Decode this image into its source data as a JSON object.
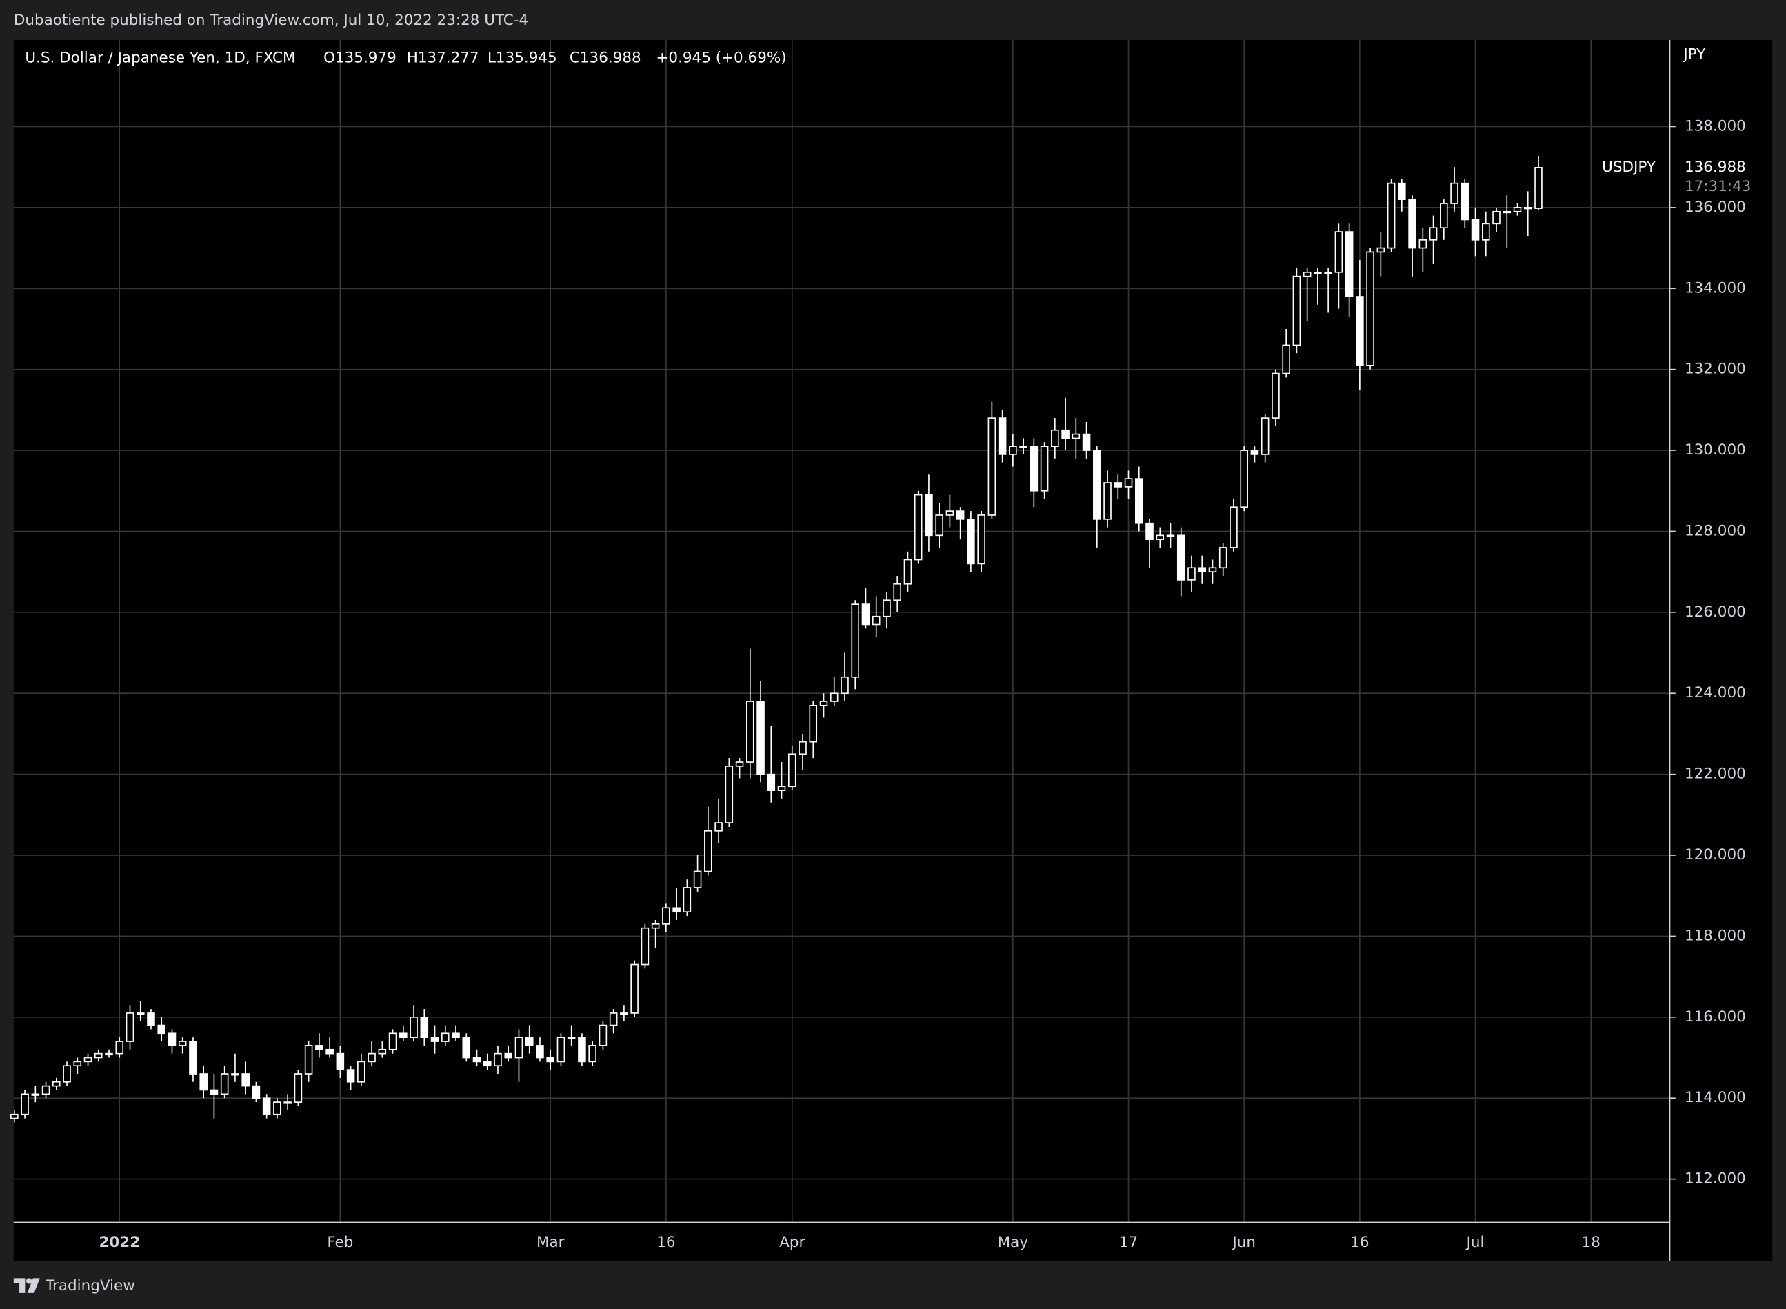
{
  "publisher": "Dubaotiente published on TradingView.com, Jul 10, 2022 23:28 UTC-4",
  "legend": {
    "symbol": "U.S. Dollar / Japanese Yen, 1D, FXCM",
    "open": "O135.979",
    "high": "H137.277",
    "low": "L135.945",
    "close": "C136.988",
    "change": "+0.945 (+0.69%)"
  },
  "brand": "TradingView",
  "chart_data": {
    "type": "candlestick",
    "y_unit": "JPY",
    "last_price_label": "136.988",
    "countdown": "17:31:43",
    "ylim": [
      110.93,
      140.14
    ],
    "yticks": [
      {
        "value": 112,
        "label": "112.000"
      },
      {
        "value": 114,
        "label": "114.000"
      },
      {
        "value": 116,
        "label": "116.000"
      },
      {
        "value": 118,
        "label": "118.000"
      },
      {
        "value": 120,
        "label": "120.000"
      },
      {
        "value": 122,
        "label": "122.000"
      },
      {
        "value": 124,
        "label": "124.000"
      },
      {
        "value": 126,
        "label": "126.000"
      },
      {
        "value": 128,
        "label": "128.000"
      },
      {
        "value": 130,
        "label": "130.000"
      },
      {
        "value": 132,
        "label": "132.000"
      },
      {
        "value": 134,
        "label": "134.000"
      },
      {
        "value": 136,
        "label": "136.000"
      },
      {
        "value": 138,
        "label": "138.000"
      }
    ],
    "grid": true,
    "categories": [
      null,
      null,
      null,
      null,
      null,
      null,
      null,
      null,
      null,
      null,
      "2022",
      null,
      null,
      null,
      null,
      null,
      null,
      null,
      null,
      null,
      null,
      null,
      null,
      null,
      null,
      null,
      null,
      null,
      null,
      null,
      null,
      "Feb",
      null,
      null,
      null,
      null,
      null,
      null,
      null,
      null,
      null,
      null,
      null,
      null,
      null,
      null,
      null,
      null,
      null,
      null,
      null,
      "Mar",
      null,
      null,
      null,
      null,
      null,
      null,
      null,
      null,
      null,
      null,
      "16",
      null,
      null,
      null,
      null,
      null,
      null,
      null,
      null,
      null,
      null,
      null,
      "Apr",
      null,
      null,
      null,
      null,
      null,
      null,
      null,
      null,
      null,
      null,
      null,
      null,
      null,
      null,
      null,
      null,
      null,
      null,
      null,
      null,
      "May",
      null,
      null,
      null,
      null,
      null,
      null,
      null,
      null,
      null,
      null,
      "17",
      null,
      null,
      null,
      null,
      null,
      null,
      null,
      null,
      null,
      null,
      "Jun",
      null,
      null,
      null,
      null,
      null,
      null,
      null,
      null,
      null,
      null,
      "16",
      null,
      null,
      null,
      null,
      null,
      null,
      null,
      null,
      null,
      null,
      "Jul",
      null,
      null,
      null,
      null,
      null,
      null,
      null,
      null,
      null,
      null,
      "18",
      null,
      null,
      null,
      null,
      null,
      null,
      null
    ],
    "series": [
      {
        "name": "USDJPY",
        "color": "#ffffff",
        "up_fill": "#000000",
        "down_fill": "#ffffff",
        "values": [
          [
            113.5,
            113.7,
            113.4,
            113.6
          ],
          [
            113.6,
            114.2,
            113.5,
            114.1
          ],
          [
            114.1,
            114.3,
            113.9,
            114.1
          ],
          [
            114.1,
            114.4,
            114.0,
            114.3
          ],
          [
            114.3,
            114.5,
            114.2,
            114.4
          ],
          [
            114.4,
            114.9,
            114.3,
            114.8
          ],
          [
            114.8,
            115.0,
            114.6,
            114.9
          ],
          [
            114.9,
            115.1,
            114.8,
            115.0
          ],
          [
            115.0,
            115.2,
            114.9,
            115.1
          ],
          [
            115.1,
            115.2,
            115.0,
            115.1
          ],
          [
            115.1,
            115.5,
            115.0,
            115.4
          ],
          [
            115.4,
            116.3,
            115.2,
            116.1
          ],
          [
            116.1,
            116.4,
            115.9,
            116.1
          ],
          [
            116.1,
            116.2,
            115.7,
            115.8
          ],
          [
            115.8,
            116.0,
            115.4,
            115.6
          ],
          [
            115.6,
            115.7,
            115.1,
            115.3
          ],
          [
            115.3,
            115.5,
            115.1,
            115.4
          ],
          [
            115.4,
            115.5,
            114.4,
            114.6
          ],
          [
            114.6,
            114.8,
            114.0,
            114.2
          ],
          [
            114.2,
            114.6,
            113.5,
            114.1
          ],
          [
            114.1,
            114.8,
            114.0,
            114.6
          ],
          [
            114.6,
            115.1,
            114.4,
            114.6
          ],
          [
            114.6,
            114.9,
            114.1,
            114.3
          ],
          [
            114.3,
            114.4,
            113.9,
            114.0
          ],
          [
            114.0,
            114.1,
            113.5,
            113.6
          ],
          [
            113.6,
            114.0,
            113.5,
            113.9
          ],
          [
            113.9,
            114.1,
            113.7,
            113.9
          ],
          [
            113.9,
            114.7,
            113.8,
            114.6
          ],
          [
            114.6,
            115.4,
            114.4,
            115.3
          ],
          [
            115.3,
            115.6,
            115.0,
            115.2
          ],
          [
            115.2,
            115.5,
            115.0,
            115.1
          ],
          [
            115.1,
            115.3,
            114.5,
            114.7
          ],
          [
            114.7,
            114.8,
            114.2,
            114.4
          ],
          [
            114.4,
            115.1,
            114.3,
            114.9
          ],
          [
            114.9,
            115.4,
            114.8,
            115.1
          ],
          [
            115.1,
            115.4,
            115.0,
            115.2
          ],
          [
            115.2,
            115.7,
            115.1,
            115.6
          ],
          [
            115.6,
            115.8,
            115.4,
            115.5
          ],
          [
            115.5,
            116.3,
            115.4,
            116.0
          ],
          [
            116.0,
            116.2,
            115.3,
            115.5
          ],
          [
            115.5,
            115.8,
            115.1,
            115.4
          ],
          [
            115.4,
            115.8,
            115.3,
            115.6
          ],
          [
            115.6,
            115.8,
            115.4,
            115.5
          ],
          [
            115.5,
            115.6,
            114.9,
            115.0
          ],
          [
            115.0,
            115.2,
            114.8,
            114.9
          ],
          [
            114.9,
            115.1,
            114.7,
            114.8
          ],
          [
            114.8,
            115.3,
            114.6,
            115.1
          ],
          [
            115.1,
            115.3,
            114.9,
            115.0
          ],
          [
            115.0,
            115.7,
            114.4,
            115.5
          ],
          [
            115.5,
            115.8,
            115.1,
            115.3
          ],
          [
            115.3,
            115.5,
            114.9,
            115.0
          ],
          [
            115.0,
            115.2,
            114.7,
            114.9
          ],
          [
            114.9,
            115.6,
            114.8,
            115.5
          ],
          [
            115.5,
            115.8,
            115.3,
            115.5
          ],
          [
            115.5,
            115.6,
            114.8,
            114.9
          ],
          [
            114.9,
            115.4,
            114.8,
            115.3
          ],
          [
            115.3,
            115.9,
            115.2,
            115.8
          ],
          [
            115.8,
            116.2,
            115.6,
            116.1
          ],
          [
            116.1,
            116.3,
            115.9,
            116.1
          ],
          [
            116.1,
            117.4,
            116.0,
            117.3
          ],
          [
            117.3,
            118.3,
            117.2,
            118.2
          ],
          [
            118.2,
            118.4,
            117.7,
            118.3
          ],
          [
            118.3,
            118.8,
            118.1,
            118.7
          ],
          [
            118.7,
            119.2,
            118.4,
            118.6
          ],
          [
            118.6,
            119.4,
            118.5,
            119.2
          ],
          [
            119.2,
            120.0,
            119.1,
            119.6
          ],
          [
            119.6,
            121.2,
            119.5,
            120.6
          ],
          [
            120.6,
            121.4,
            120.3,
            120.8
          ],
          [
            120.8,
            122.4,
            120.7,
            122.2
          ],
          [
            122.2,
            122.4,
            121.9,
            122.3
          ],
          [
            122.3,
            125.1,
            121.9,
            123.8
          ],
          [
            123.8,
            124.3,
            121.8,
            122.0
          ],
          [
            122.0,
            123.2,
            121.3,
            121.6
          ],
          [
            121.6,
            122.3,
            121.4,
            121.7
          ],
          [
            121.7,
            122.7,
            121.6,
            122.5
          ],
          [
            122.5,
            123.0,
            122.1,
            122.8
          ],
          [
            122.8,
            123.8,
            122.4,
            123.7
          ],
          [
            123.7,
            124.0,
            123.4,
            123.8
          ],
          [
            123.8,
            124.4,
            123.7,
            124.0
          ],
          [
            124.0,
            125.0,
            123.8,
            124.4
          ],
          [
            124.4,
            126.3,
            124.1,
            126.2
          ],
          [
            126.2,
            126.6,
            125.6,
            125.7
          ],
          [
            125.7,
            126.4,
            125.4,
            125.9
          ],
          [
            125.9,
            126.5,
            125.6,
            126.3
          ],
          [
            126.3,
            126.9,
            126.0,
            126.7
          ],
          [
            126.7,
            127.5,
            126.5,
            127.3
          ],
          [
            127.3,
            129.0,
            127.2,
            128.9
          ],
          [
            128.9,
            129.4,
            127.5,
            127.9
          ],
          [
            127.9,
            128.7,
            127.6,
            128.4
          ],
          [
            128.4,
            128.9,
            128.1,
            128.5
          ],
          [
            128.5,
            128.6,
            127.8,
            128.3
          ],
          [
            128.3,
            128.5,
            127.0,
            127.2
          ],
          [
            127.2,
            128.5,
            127.0,
            128.4
          ],
          [
            128.4,
            131.2,
            128.3,
            130.8
          ],
          [
            130.8,
            131.0,
            129.7,
            129.9
          ],
          [
            129.9,
            130.4,
            129.6,
            130.1
          ],
          [
            130.1,
            130.3,
            129.9,
            130.1
          ],
          [
            130.1,
            130.3,
            128.6,
            129.0
          ],
          [
            129.0,
            130.2,
            128.8,
            130.1
          ],
          [
            130.1,
            130.8,
            129.8,
            130.5
          ],
          [
            130.5,
            131.3,
            130.0,
            130.3
          ],
          [
            130.3,
            130.8,
            129.8,
            130.4
          ],
          [
            130.4,
            130.7,
            129.8,
            130.0
          ],
          [
            130.0,
            130.1,
            127.6,
            128.3
          ],
          [
            128.3,
            129.5,
            128.1,
            129.2
          ],
          [
            129.2,
            129.4,
            128.8,
            129.1
          ],
          [
            129.1,
            129.5,
            128.8,
            129.3
          ],
          [
            129.3,
            129.6,
            128.0,
            128.2
          ],
          [
            128.2,
            128.3,
            127.1,
            127.8
          ],
          [
            127.8,
            128.1,
            127.6,
            127.9
          ],
          [
            127.9,
            128.2,
            127.6,
            127.9
          ],
          [
            127.9,
            128.1,
            126.4,
            126.8
          ],
          [
            126.8,
            127.4,
            126.5,
            127.1
          ],
          [
            127.1,
            127.4,
            126.7,
            127.0
          ],
          [
            127.0,
            127.3,
            126.7,
            127.1
          ],
          [
            127.1,
            127.7,
            126.9,
            127.6
          ],
          [
            127.6,
            128.8,
            127.5,
            128.6
          ],
          [
            128.6,
            130.1,
            128.5,
            130.0
          ],
          [
            130.0,
            130.1,
            129.7,
            129.9
          ],
          [
            129.9,
            130.9,
            129.7,
            130.8
          ],
          [
            130.8,
            132.0,
            130.6,
            131.9
          ],
          [
            131.9,
            133.0,
            131.8,
            132.6
          ],
          [
            132.6,
            134.5,
            132.4,
            134.3
          ],
          [
            134.3,
            134.5,
            133.2,
            134.4
          ],
          [
            134.4,
            134.5,
            133.6,
            134.4
          ],
          [
            134.4,
            134.5,
            133.4,
            134.4
          ],
          [
            134.4,
            135.6,
            133.5,
            135.4
          ],
          [
            135.4,
            135.6,
            133.3,
            133.8
          ],
          [
            133.8,
            134.7,
            131.5,
            132.1
          ],
          [
            132.1,
            135.0,
            132.0,
            134.9
          ],
          [
            134.9,
            135.4,
            134.3,
            135.0
          ],
          [
            135.0,
            136.7,
            134.9,
            136.6
          ],
          [
            136.6,
            136.7,
            135.9,
            136.2
          ],
          [
            136.2,
            136.3,
            134.3,
            135.0
          ],
          [
            135.0,
            135.5,
            134.4,
            135.2
          ],
          [
            135.2,
            135.8,
            134.6,
            135.5
          ],
          [
            135.5,
            136.2,
            135.2,
            136.1
          ],
          [
            136.1,
            137.0,
            135.9,
            136.6
          ],
          [
            136.6,
            136.7,
            135.5,
            135.7
          ],
          [
            135.7,
            136.0,
            134.8,
            135.2
          ],
          [
            135.2,
            135.9,
            134.8,
            135.6
          ],
          [
            135.6,
            136.0,
            135.4,
            135.9
          ],
          [
            135.9,
            136.3,
            135.0,
            135.9
          ],
          [
            135.9,
            136.1,
            135.8,
            136.0
          ],
          [
            136.0,
            136.4,
            135.3,
            135.98
          ],
          [
            135.979,
            137.277,
            135.945,
            136.988
          ],
          null,
          null,
          null,
          null,
          null,
          null,
          null,
          null,
          null,
          null,
          null,
          null
        ]
      }
    ]
  }
}
